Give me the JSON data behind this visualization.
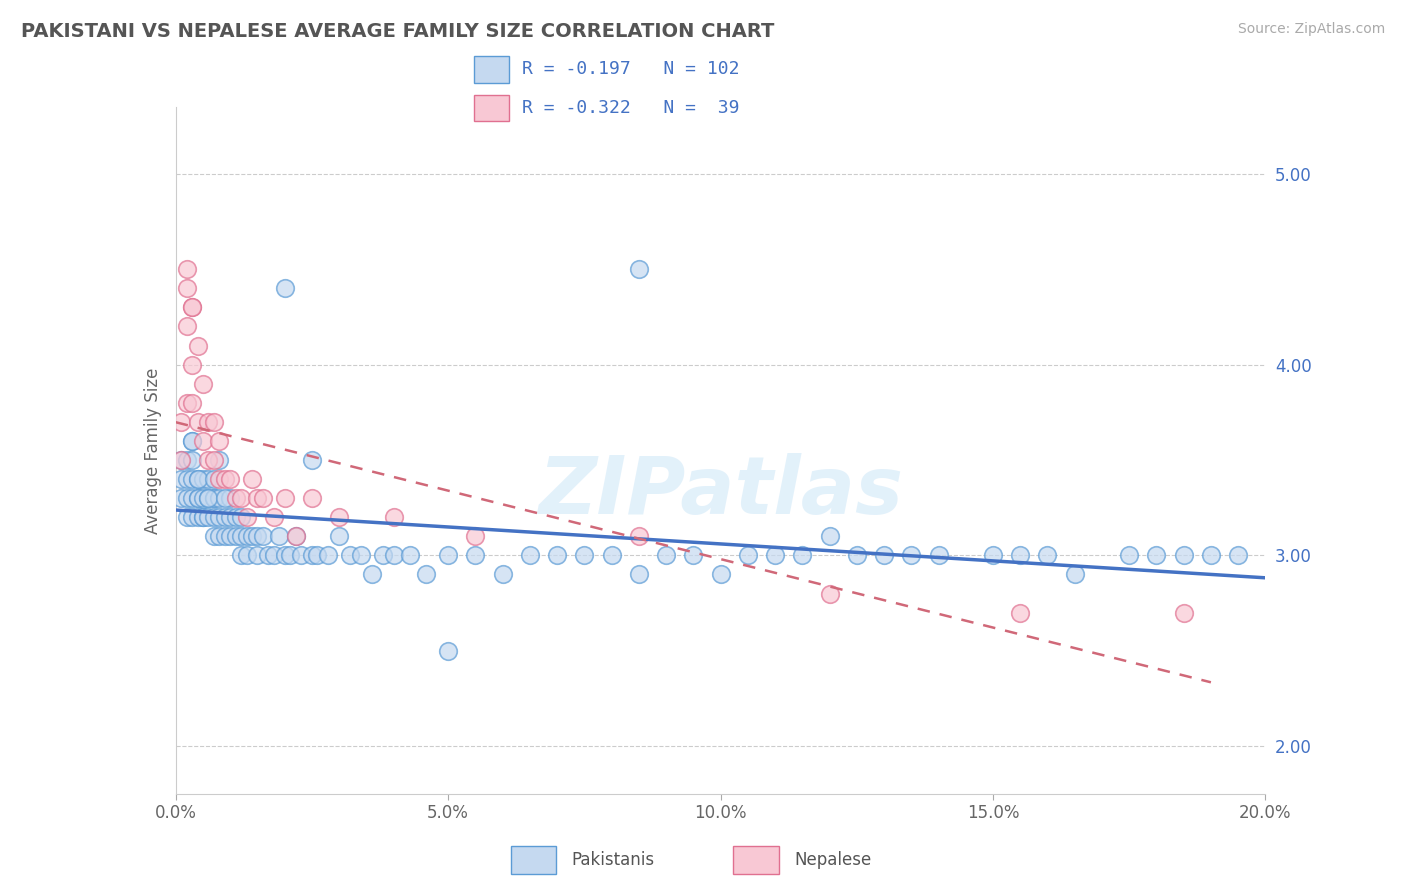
{
  "title": "PAKISTANI VS NEPALESE AVERAGE FAMILY SIZE CORRELATION CHART",
  "source": "Source: ZipAtlas.com",
  "ylabel": "Average Family Size",
  "xlim": [
    0.0,
    0.2
  ],
  "ylim": [
    1.75,
    5.35
  ],
  "yticks": [
    2.0,
    3.0,
    4.0,
    5.0
  ],
  "xticks": [
    0.0,
    0.05,
    0.1,
    0.15,
    0.2
  ],
  "xticklabels": [
    "0.0%",
    "5.0%",
    "10.0%",
    "15.0%",
    "20.0%"
  ],
  "legend_r_pakistani": "-0.197",
  "legend_n_pakistani": "102",
  "legend_r_nepalese": "-0.322",
  "legend_n_nepalese": "39",
  "pakistani_face_color": "#c5d9f0",
  "pakistani_edge_color": "#5b9bd5",
  "nepalese_face_color": "#f8c8d4",
  "nepalese_edge_color": "#e07090",
  "pakistani_line_color": "#4472c4",
  "nepalese_line_color": "#d06878",
  "watermark": "ZIPatlas",
  "pakistani_x": [
    0.001,
    0.001,
    0.001,
    0.002,
    0.002,
    0.002,
    0.002,
    0.003,
    0.003,
    0.003,
    0.003,
    0.003,
    0.004,
    0.004,
    0.004,
    0.004,
    0.005,
    0.005,
    0.005,
    0.005,
    0.006,
    0.006,
    0.006,
    0.007,
    0.007,
    0.007,
    0.007,
    0.008,
    0.008,
    0.008,
    0.009,
    0.009,
    0.01,
    0.01,
    0.01,
    0.011,
    0.011,
    0.012,
    0.012,
    0.013,
    0.013,
    0.014,
    0.015,
    0.015,
    0.016,
    0.017,
    0.018,
    0.019,
    0.02,
    0.021,
    0.022,
    0.023,
    0.025,
    0.026,
    0.028,
    0.03,
    0.032,
    0.034,
    0.036,
    0.038,
    0.04,
    0.043,
    0.046,
    0.05,
    0.055,
    0.06,
    0.065,
    0.07,
    0.075,
    0.08,
    0.085,
    0.09,
    0.095,
    0.1,
    0.105,
    0.11,
    0.115,
    0.12,
    0.125,
    0.13,
    0.135,
    0.14,
    0.15,
    0.155,
    0.16,
    0.165,
    0.175,
    0.18,
    0.185,
    0.19,
    0.195,
    0.003,
    0.004,
    0.006,
    0.007,
    0.008,
    0.009,
    0.012,
    0.02,
    0.025,
    0.05,
    0.085
  ],
  "pakistani_y": [
    3.4,
    3.5,
    3.3,
    3.5,
    3.3,
    3.4,
    3.2,
    3.4,
    3.5,
    3.3,
    3.2,
    3.6,
    3.3,
    3.4,
    3.2,
    3.3,
    3.2,
    3.4,
    3.3,
    3.2,
    3.3,
    3.2,
    3.4,
    3.2,
    3.3,
    3.1,
    3.3,
    3.1,
    3.2,
    3.3,
    3.2,
    3.1,
    3.3,
    3.2,
    3.1,
    3.2,
    3.1,
    3.1,
    3.0,
    3.1,
    3.0,
    3.1,
    3.1,
    3.0,
    3.1,
    3.0,
    3.0,
    3.1,
    3.0,
    3.0,
    3.1,
    3.0,
    3.0,
    3.0,
    3.0,
    3.1,
    3.0,
    3.0,
    2.9,
    3.0,
    3.0,
    3.0,
    2.9,
    3.0,
    3.0,
    2.9,
    3.0,
    3.0,
    3.0,
    3.0,
    2.9,
    3.0,
    3.0,
    2.9,
    3.0,
    3.0,
    3.0,
    3.1,
    3.0,
    3.0,
    3.0,
    3.0,
    3.0,
    3.0,
    3.0,
    2.9,
    3.0,
    3.0,
    3.0,
    3.0,
    3.0,
    3.6,
    3.4,
    3.3,
    3.4,
    3.5,
    3.3,
    3.2,
    4.4,
    3.5,
    2.5,
    4.5
  ],
  "nepalese_x": [
    0.001,
    0.001,
    0.002,
    0.002,
    0.002,
    0.003,
    0.003,
    0.003,
    0.004,
    0.004,
    0.005,
    0.005,
    0.006,
    0.006,
    0.007,
    0.007,
    0.008,
    0.008,
    0.009,
    0.01,
    0.011,
    0.012,
    0.013,
    0.014,
    0.015,
    0.016,
    0.018,
    0.02,
    0.022,
    0.025,
    0.03,
    0.04,
    0.055,
    0.085,
    0.12,
    0.155,
    0.185,
    0.002,
    0.003
  ],
  "nepalese_y": [
    3.5,
    3.7,
    4.4,
    4.2,
    3.8,
    4.0,
    4.3,
    3.8,
    4.1,
    3.7,
    3.9,
    3.6,
    3.7,
    3.5,
    3.7,
    3.5,
    3.6,
    3.4,
    3.4,
    3.4,
    3.3,
    3.3,
    3.2,
    3.4,
    3.3,
    3.3,
    3.2,
    3.3,
    3.1,
    3.3,
    3.2,
    3.2,
    3.1,
    3.1,
    2.8,
    2.7,
    2.7,
    4.5,
    4.3
  ]
}
